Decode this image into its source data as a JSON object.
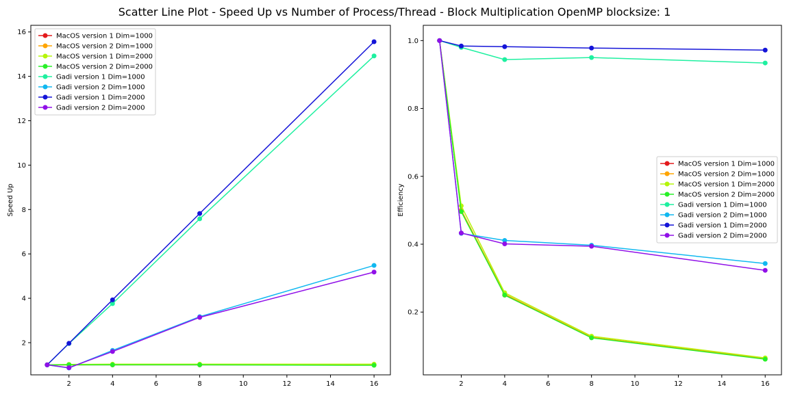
{
  "figure_title": "Scatter Line Plot - Speed Up vs Number of Process/Thread - Block Multiplication OpenMP blocksize: 1",
  "chart_data": [
    {
      "type": "line",
      "title": "",
      "xlabel": "",
      "ylabel": "Speed Up",
      "xlim": [
        0.25,
        16.75
      ],
      "ylim": [
        0.55,
        16.3
      ],
      "xticks": [
        2,
        4,
        6,
        8,
        10,
        12,
        14,
        16
      ],
      "yticks": [
        2,
        4,
        6,
        8,
        10,
        12,
        14,
        16
      ],
      "legend_position": "top-left",
      "x": [
        1,
        2,
        4,
        8,
        16
      ],
      "series": [
        {
          "name": "MacOS version 1 Dim=1000",
          "color": "#e31a1c",
          "values": [
            1.0,
            1.0,
            1.0,
            1.0,
            1.0
          ]
        },
        {
          "name": "MacOS version 2 Dim=1000",
          "color": "#ffa500",
          "values": [
            1.0,
            1.0,
            1.01,
            1.01,
            1.0
          ]
        },
        {
          "name": "MacOS version 1 Dim=2000",
          "color": "#b5f50a",
          "values": [
            1.0,
            1.02,
            1.03,
            1.03,
            1.03
          ]
        },
        {
          "name": "MacOS version 2 Dim=2000",
          "color": "#28f028",
          "values": [
            1.0,
            1.0,
            1.0,
            1.0,
            0.98
          ]
        },
        {
          "name": "Gadi version 1 Dim=1000",
          "color": "#1ef0a0",
          "values": [
            1.0,
            1.96,
            3.76,
            7.58,
            14.92
          ]
        },
        {
          "name": "Gadi version 2 Dim=1000",
          "color": "#10b8f0",
          "values": [
            1.0,
            0.86,
            1.65,
            3.17,
            5.48
          ]
        },
        {
          "name": "Gadi version 1 Dim=2000",
          "color": "#1414d8",
          "values": [
            1.0,
            1.97,
            3.93,
            7.82,
            15.56
          ]
        },
        {
          "name": "Gadi version 2 Dim=2000",
          "color": "#9010e8",
          "values": [
            1.0,
            0.87,
            1.6,
            3.14,
            5.18
          ]
        }
      ]
    },
    {
      "type": "line",
      "title": "",
      "xlabel": "",
      "ylabel": "Efficiency",
      "xlim": [
        0.25,
        16.75
      ],
      "ylim": [
        0.015,
        1.045
      ],
      "xticks": [
        2,
        4,
        6,
        8,
        10,
        12,
        14,
        16
      ],
      "yticks": [
        0.2,
        0.4,
        0.6,
        0.8,
        1.0
      ],
      "ytick_labels": [
        "0.2",
        "0.4",
        "0.6",
        "0.8",
        "1.0"
      ],
      "legend_position": "center-right",
      "x": [
        1,
        2,
        4,
        8,
        16
      ],
      "series": [
        {
          "name": "MacOS version 1 Dim=1000",
          "color": "#e31a1c",
          "values": [
            1.0,
            0.5,
            0.25,
            0.125,
            0.0625
          ]
        },
        {
          "name": "MacOS version 2 Dim=1000",
          "color": "#ffa500",
          "values": [
            1.0,
            0.5,
            0.253,
            0.126,
            0.0625
          ]
        },
        {
          "name": "MacOS version 1 Dim=2000",
          "color": "#b5f50a",
          "values": [
            1.0,
            0.513,
            0.257,
            0.129,
            0.065
          ]
        },
        {
          "name": "MacOS version 2 Dim=2000",
          "color": "#28f028",
          "values": [
            1.0,
            0.496,
            0.25,
            0.124,
            0.061
          ]
        },
        {
          "name": "Gadi version 1 Dim=1000",
          "color": "#1ef0a0",
          "values": [
            1.0,
            0.98,
            0.944,
            0.95,
            0.934
          ]
        },
        {
          "name": "Gadi version 2 Dim=1000",
          "color": "#10b8f0",
          "values": [
            1.0,
            0.432,
            0.411,
            0.397,
            0.343
          ]
        },
        {
          "name": "Gadi version 1 Dim=2000",
          "color": "#1414d8",
          "values": [
            1.0,
            0.984,
            0.982,
            0.978,
            0.972
          ]
        },
        {
          "name": "Gadi version 2 Dim=2000",
          "color": "#9010e8",
          "values": [
            1.0,
            0.433,
            0.401,
            0.394,
            0.323
          ]
        }
      ]
    }
  ]
}
